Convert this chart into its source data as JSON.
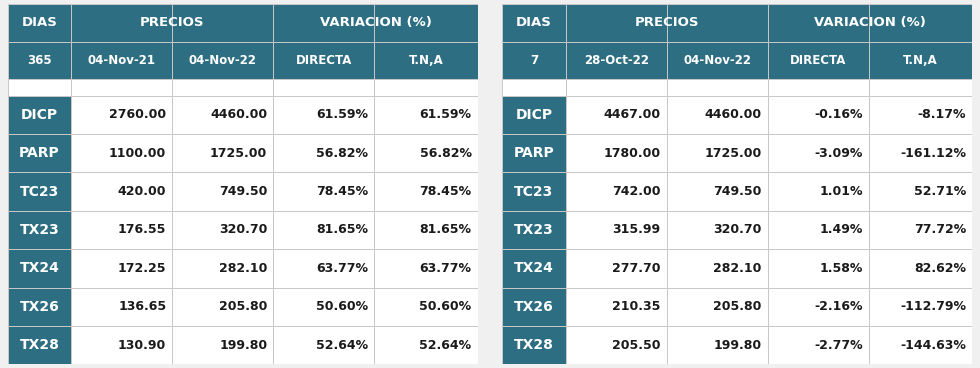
{
  "table1": {
    "sub_headers": [
      "365",
      "04-Nov-21",
      "04-Nov-22",
      "DIRECTA",
      "T.N,A"
    ],
    "rows": [
      [
        "DICP",
        "2760.00",
        "4460.00",
        "61.59%",
        "61.59%"
      ],
      [
        "PARP",
        "1100.00",
        "1725.00",
        "56.82%",
        "56.82%"
      ],
      [
        "TC23",
        "420.00",
        "749.50",
        "78.45%",
        "78.45%"
      ],
      [
        "TX23",
        "176.55",
        "320.70",
        "81.65%",
        "81.65%"
      ],
      [
        "TX24",
        "172.25",
        "282.10",
        "63.77%",
        "63.77%"
      ],
      [
        "TX26",
        "136.65",
        "205.80",
        "50.60%",
        "50.60%"
      ],
      [
        "TX28",
        "130.90",
        "199.80",
        "52.64%",
        "52.64%"
      ]
    ]
  },
  "table2": {
    "sub_headers": [
      "7",
      "28-Oct-22",
      "04-Nov-22",
      "DIRECTA",
      "T.N,A"
    ],
    "rows": [
      [
        "DICP",
        "4467.00",
        "4460.00",
        "-0.16%",
        "-8.17%"
      ],
      [
        "PARP",
        "1780.00",
        "1725.00",
        "-3.09%",
        "-161.12%"
      ],
      [
        "TC23",
        "742.00",
        "749.50",
        "1.01%",
        "52.71%"
      ],
      [
        "TX23",
        "315.99",
        "320.70",
        "1.49%",
        "77.72%"
      ],
      [
        "TX24",
        "277.70",
        "282.10",
        "1.58%",
        "82.62%"
      ],
      [
        "TX26",
        "210.35",
        "205.80",
        "-2.16%",
        "-112.79%"
      ],
      [
        "TX28",
        "205.50",
        "199.80",
        "-2.77%",
        "-144.63%"
      ]
    ]
  },
  "header_bg": "#2E6E82",
  "header_text": "#FFFFFF",
  "row_label_bg": "#2E6E82",
  "row_label_text": "#FFFFFF",
  "data_bg": "#FFFFFF",
  "data_text": "#1A1A1A",
  "border_light": "#C8C8C8",
  "border_dark": "#888888",
  "fig_bg": "#F0F0F0",
  "precios_label": "PRECIOS",
  "variacion_label": "VARIACION (%)",
  "dias_label": "DIAS",
  "header_fontsize": 9.5,
  "subheader_fontsize": 8.5,
  "data_fontsize": 9.0,
  "label_fontsize": 10.0
}
